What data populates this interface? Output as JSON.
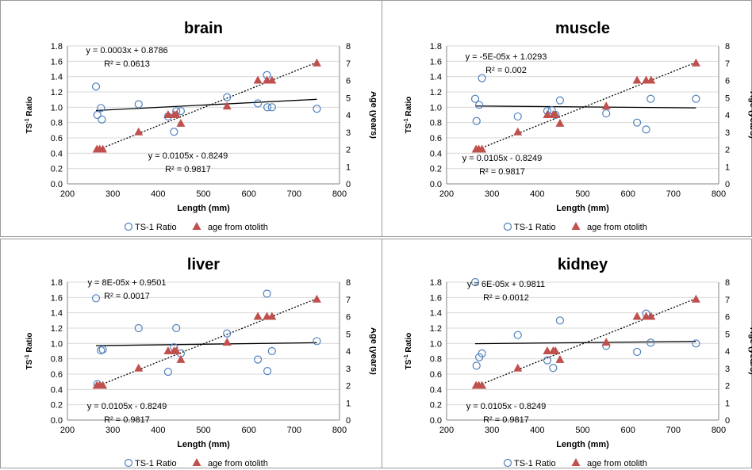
{
  "chart_data": [
    {
      "type": "scatter",
      "title": "brain",
      "xlabel": "Length (mm)",
      "ylabel_left": "TS-1 Ratio",
      "ylabel_right": "Age (years)",
      "xlim": [
        200,
        800
      ],
      "ylim_left": [
        0,
        1.8
      ],
      "ylim_right": [
        0,
        8
      ],
      "xticks": [
        "200",
        "300",
        "400",
        "500",
        "600",
        "700",
        "800"
      ],
      "yticks_left": [
        "0.0",
        "0.2",
        "0.4",
        "0.6",
        "0.8",
        "1.0",
        "1.2",
        "1.4",
        "1.6",
        "1.8"
      ],
      "yticks_right": [
        "0",
        "1",
        "2",
        "3",
        "4",
        "5",
        "6",
        "7",
        "8"
      ],
      "legend": [
        "TS-1 Ratio",
        "age from otolith"
      ],
      "ratio_equation": "y = 0.0003x + 0.8786",
      "ratio_r2": "R² = 0.0613",
      "age_equation": "y = 0.0105x - 0.8249",
      "age_r2": "R² = 0.9817",
      "series": [
        {
          "name": "TS-1 Ratio",
          "axis": "left",
          "x": [
            263,
            266,
            274,
            276,
            357,
            422,
            435,
            440,
            450,
            552,
            620,
            640,
            641,
            651,
            750
          ],
          "y": [
            1.27,
            0.9,
            0.99,
            0.84,
            1.04,
            0.88,
            0.68,
            0.95,
            0.95,
            1.13,
            1.05,
            1.42,
            1.0,
            1.0,
            0.98
          ]
        },
        {
          "name": "age from otolith",
          "axis": "right",
          "x": [
            265,
            271,
            278,
            357,
            422,
            435,
            440,
            450,
            552,
            620,
            640,
            651,
            750
          ],
          "y": [
            2,
            2,
            2,
            3,
            4,
            4,
            4,
            3.5,
            4.5,
            6,
            6,
            6,
            7
          ]
        }
      ],
      "trend_ratio": {
        "slope": 0.0003,
        "intercept": 0.8786
      },
      "trend_age": {
        "slope": 0.0105,
        "intercept": -0.8249
      }
    },
    {
      "type": "scatter",
      "title": "muscle",
      "xlabel": "Length (mm)",
      "ylabel_left": "TS-1 Ratio",
      "ylabel_right": "Age (years)",
      "xlim": [
        200,
        800
      ],
      "ylim_left": [
        0,
        1.8
      ],
      "ylim_right": [
        0,
        8
      ],
      "xticks": [
        "200",
        "300",
        "400",
        "500",
        "600",
        "700",
        "800"
      ],
      "yticks_left": [
        "0.0",
        "0.2",
        "0.4",
        "0.6",
        "0.8",
        "1.0",
        "1.2",
        "1.4",
        "1.6",
        "1.8"
      ],
      "yticks_right": [
        "0",
        "1",
        "2",
        "3",
        "4",
        "5",
        "6",
        "7",
        "8"
      ],
      "legend": [
        "TS-1 Ratio",
        "age from otolith"
      ],
      "ratio_equation": "y = -5E-05x + 1.0293",
      "ratio_r2": "R² = 0.002",
      "age_equation": "y = 0.0105x - 0.8249",
      "age_r2": "R² = 0.9817",
      "series": [
        {
          "name": "TS-1 Ratio",
          "axis": "left",
          "x": [
            263,
            266,
            272,
            278,
            357,
            422,
            432,
            440,
            450,
            552,
            620,
            640,
            650,
            750
          ],
          "y": [
            1.11,
            0.82,
            1.03,
            1.38,
            0.88,
            0.95,
            0.96,
            0.9,
            1.09,
            0.92,
            0.8,
            0.71,
            1.11,
            1.11
          ]
        },
        {
          "name": "age from otolith",
          "axis": "right",
          "x": [
            265,
            271,
            278,
            357,
            422,
            435,
            440,
            450,
            552,
            620,
            640,
            651,
            750
          ],
          "y": [
            2,
            2,
            2,
            3,
            4,
            4,
            4,
            3.5,
            4.5,
            6,
            6,
            6,
            7
          ]
        }
      ],
      "trend_ratio": {
        "slope": -5e-05,
        "intercept": 1.0293
      },
      "trend_age": {
        "slope": 0.0105,
        "intercept": -0.8249
      }
    },
    {
      "type": "scatter",
      "title": "liver",
      "xlabel": "Length (mm)",
      "ylabel_left": "TS-1 Ratio",
      "ylabel_right": "Age (years)",
      "xlim": [
        200,
        800
      ],
      "ylim_left": [
        0,
        1.8
      ],
      "ylim_right": [
        0,
        8
      ],
      "xticks": [
        "200",
        "300",
        "400",
        "500",
        "600",
        "700",
        "800"
      ],
      "yticks_left": [
        "0.0",
        "0.2",
        "0.4",
        "0.6",
        "0.8",
        "1.0",
        "1.2",
        "1.4",
        "1.6",
        "1.8"
      ],
      "yticks_right": [
        "0",
        "1",
        "2",
        "3",
        "4",
        "5",
        "6",
        "7",
        "8"
      ],
      "legend": [
        "TS-1 Ratio",
        "age from otolith"
      ],
      "ratio_equation": "y = 8E-05x + 0.9501",
      "ratio_r2": "R² = 0.0017",
      "age_equation": "y = 0.0105x - 0.8249",
      "age_r2": "R² = 0.9817",
      "series": [
        {
          "name": "TS-1 Ratio",
          "axis": "left",
          "x": [
            263,
            266,
            274,
            278,
            357,
            422,
            435,
            440,
            450,
            552,
            620,
            640,
            641,
            651,
            750
          ],
          "y": [
            1.59,
            0.47,
            0.91,
            0.92,
            1.2,
            0.63,
            0.95,
            1.2,
            0.87,
            1.13,
            0.79,
            1.65,
            0.64,
            0.9,
            1.03
          ]
        },
        {
          "name": "age from otolith",
          "axis": "right",
          "x": [
            265,
            271,
            278,
            357,
            422,
            435,
            440,
            450,
            552,
            620,
            640,
            651,
            750
          ],
          "y": [
            2,
            2,
            2,
            3,
            4,
            4,
            4,
            3.5,
            4.5,
            6,
            6,
            6,
            7
          ]
        }
      ],
      "trend_ratio": {
        "slope": 8e-05,
        "intercept": 0.9501
      },
      "trend_age": {
        "slope": 0.0105,
        "intercept": -0.8249
      }
    },
    {
      "type": "scatter",
      "title": "kidney",
      "xlabel": "Length (mm)",
      "ylabel_left": "TS-1 Ratio",
      "ylabel_right": "Age (years)",
      "xlim": [
        200,
        800
      ],
      "ylim_left": [
        0,
        1.8
      ],
      "ylim_right": [
        0,
        8
      ],
      "xticks": [
        "200",
        "300",
        "400",
        "500",
        "600",
        "700",
        "800"
      ],
      "yticks_left": [
        "0.0",
        "0.2",
        "0.4",
        "0.6",
        "0.8",
        "1.0",
        "1.2",
        "1.4",
        "1.6",
        "1.8"
      ],
      "yticks_right": [
        "0",
        "1",
        "2",
        "3",
        "4",
        "5",
        "6",
        "7",
        "8"
      ],
      "legend": [
        "TS-1 Ratio",
        "age from otolith"
      ],
      "ratio_equation": "y = 6E-05x + 0.9811",
      "ratio_r2": "R² = 0.0012",
      "age_equation": "y = 0.0105x - 0.8249",
      "age_r2": "R² = 0.9817",
      "series": [
        {
          "name": "TS-1 Ratio",
          "axis": "left",
          "x": [
            263,
            266,
            272,
            278,
            357,
            422,
            435,
            450,
            552,
            620,
            640,
            650,
            750
          ],
          "y": [
            1.8,
            0.71,
            0.82,
            0.87,
            1.11,
            0.78,
            0.68,
            1.3,
            0.97,
            0.89,
            1.39,
            1.01,
            1.0
          ]
        },
        {
          "name": "age from otolith",
          "axis": "right",
          "x": [
            265,
            271,
            278,
            357,
            422,
            435,
            440,
            450,
            552,
            620,
            640,
            651,
            750
          ],
          "y": [
            2,
            2,
            2,
            3,
            4,
            4,
            4,
            3.5,
            4.5,
            6,
            6,
            6,
            7
          ]
        }
      ],
      "trend_ratio": {
        "slope": 6e-05,
        "intercept": 0.9811
      },
      "trend_age": {
        "slope": 0.0105,
        "intercept": -0.8249
      }
    }
  ],
  "colors": {
    "ratio_marker": "#4f81bd",
    "age_marker": "#c0504d",
    "trend_line": "#000000",
    "gridline": "#d9d9d9"
  }
}
